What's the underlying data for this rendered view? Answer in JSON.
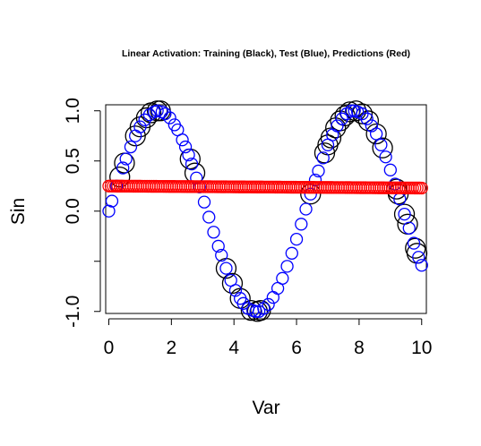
{
  "chart_data": {
    "type": "scatter",
    "title": "Linear Activation: Training (Black), Test (Blue), Predictions (Red)",
    "xlabel": "Var",
    "ylabel": "Sin",
    "xlim": [
      -0.1,
      10.15
    ],
    "ylim": [
      -1.02,
      1.06
    ],
    "x_ticks": [
      0,
      2,
      4,
      6,
      8,
      10
    ],
    "x_tick_labels": [
      "0",
      "2",
      "4",
      "6",
      "8",
      "10"
    ],
    "y_ticks": [
      1.0,
      0.5,
      0.0,
      -1.0
    ],
    "y_tick_labels": [
      "1.0",
      "0.5",
      "0.0",
      "-1.0"
    ],
    "y_tick_marks": [
      1.0,
      0.5,
      0.0,
      -0.5,
      -1.0
    ],
    "grid": false,
    "legend": "none",
    "series": [
      {
        "name": "Training",
        "color": "#000000",
        "marker": "open-circle-large",
        "x": [
          0.35,
          0.5,
          0.85,
          1.0,
          1.2,
          1.35,
          1.55,
          1.65,
          2.6,
          2.75,
          3.75,
          3.95,
          4.2,
          4.55,
          4.75,
          4.85,
          6.45,
          6.9,
          7.0,
          7.1,
          7.25,
          7.4,
          7.55,
          7.7,
          7.9,
          8.1,
          8.3,
          8.55,
          8.75,
          9.2,
          9.25,
          9.45,
          9.55,
          9.8,
          9.85
        ],
        "y": [
          0.34,
          0.48,
          0.75,
          0.84,
          0.93,
          0.98,
          1.0,
          1.0,
          0.52,
          0.38,
          -0.57,
          -0.72,
          -0.87,
          -0.99,
          -1.0,
          -0.99,
          0.17,
          0.58,
          0.66,
          0.73,
          0.83,
          0.9,
          0.95,
          0.99,
          1.0,
          0.97,
          0.9,
          0.77,
          0.63,
          0.22,
          0.17,
          -0.03,
          -0.13,
          -0.37,
          -0.42
        ]
      },
      {
        "name": "Test",
        "color": "#0000ff",
        "marker": "open-circle",
        "x": [
          0.0,
          0.1,
          0.25,
          0.45,
          0.55,
          0.7,
          0.85,
          1.0,
          1.15,
          1.3,
          1.45,
          1.55,
          1.7,
          1.8,
          1.95,
          2.1,
          2.2,
          2.35,
          2.45,
          2.55,
          2.65,
          2.8,
          2.9,
          3.05,
          3.2,
          3.35,
          3.5,
          3.6,
          3.75,
          3.9,
          4.05,
          4.2,
          4.3,
          4.45,
          4.6,
          4.7,
          4.8,
          4.95,
          5.1,
          5.25,
          5.4,
          5.55,
          5.7,
          5.85,
          6.0,
          6.15,
          6.3,
          6.45,
          6.6,
          6.7,
          6.85,
          7.0,
          7.15,
          7.3,
          7.45,
          7.6,
          7.75,
          7.85,
          7.95,
          8.1,
          8.25,
          8.4,
          8.55,
          8.7,
          8.85,
          9.0,
          9.15,
          9.3,
          9.45,
          9.6,
          9.75,
          9.9,
          10.0
        ],
        "y": [
          0.0,
          0.1,
          0.25,
          0.43,
          0.52,
          0.64,
          0.75,
          0.84,
          0.91,
          0.96,
          0.99,
          1.0,
          0.99,
          0.97,
          0.93,
          0.86,
          0.81,
          0.71,
          0.64,
          0.56,
          0.47,
          0.33,
          0.24,
          0.09,
          -0.06,
          -0.21,
          -0.35,
          -0.44,
          -0.57,
          -0.69,
          -0.79,
          -0.87,
          -0.92,
          -0.97,
          -0.99,
          -1.0,
          -1.0,
          -0.97,
          -0.93,
          -0.86,
          -0.77,
          -0.67,
          -0.55,
          -0.42,
          -0.28,
          -0.13,
          0.02,
          0.17,
          0.31,
          0.4,
          0.53,
          0.66,
          0.76,
          0.85,
          0.92,
          0.97,
          1.0,
          1.0,
          0.99,
          0.97,
          0.92,
          0.85,
          0.77,
          0.66,
          0.54,
          0.41,
          0.27,
          0.12,
          -0.03,
          -0.17,
          -0.32,
          -0.46,
          -0.54
        ]
      },
      {
        "name": "Predictions",
        "color": "#ff0000",
        "marker": "open-circle-dense",
        "x_range": [
          0.0,
          10.0
        ],
        "y_range": [
          0.25,
          0.23
        ]
      }
    ]
  }
}
